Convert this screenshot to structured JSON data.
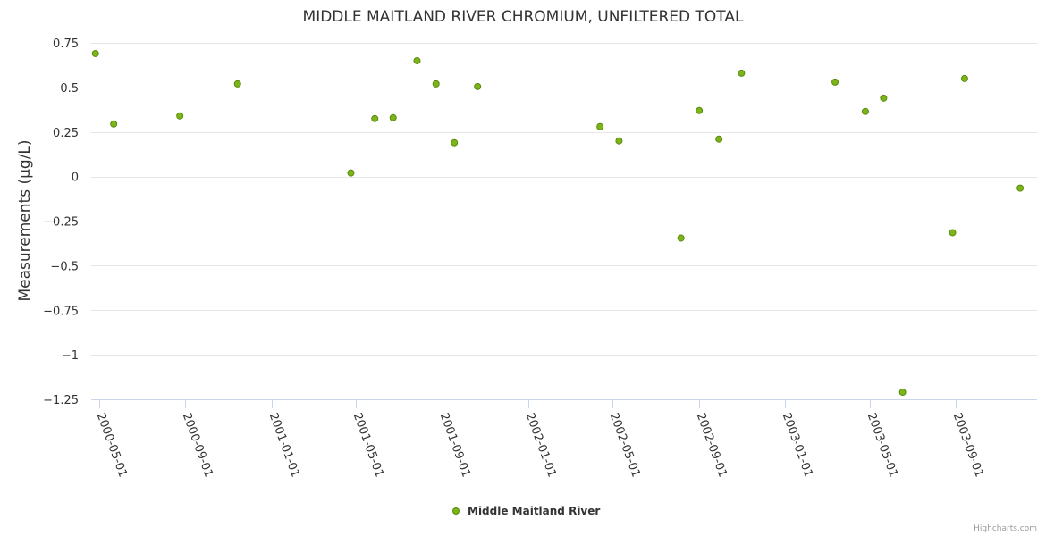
{
  "chart_data": {
    "type": "scatter",
    "title": "MIDDLE MAITLAND RIVER CHROMIUM, UNFILTERED TOTAL",
    "ylabel": "Measurements (µg/L)",
    "xlabel": "",
    "ylim": [
      -1.25,
      0.75
    ],
    "yticks": [
      0.75,
      0.5,
      0.25,
      0,
      -0.25,
      -0.5,
      -0.75,
      -1,
      -1.25
    ],
    "ytick_labels": [
      "0.75",
      "0.5",
      "0.25",
      "0",
      "−0.25",
      "−0.5",
      "−0.75",
      "−1",
      "−1.25"
    ],
    "xlim": [
      "2000-04-20",
      "2003-12-25"
    ],
    "xticks": [
      "2000-05-01",
      "2000-09-01",
      "2001-01-01",
      "2001-05-01",
      "2001-09-01",
      "2002-01-01",
      "2002-05-01",
      "2002-09-01",
      "2003-01-01",
      "2003-05-01",
      "2003-09-01"
    ],
    "grid": true,
    "legend": "bottom-center",
    "series": [
      {
        "name": "Middle Maitland River",
        "color": "#7cb518",
        "points": [
          {
            "x": "2000-04-26",
            "y": 0.69
          },
          {
            "x": "2000-05-22",
            "y": 0.295
          },
          {
            "x": "2000-08-24",
            "y": 0.34
          },
          {
            "x": "2000-11-14",
            "y": 0.52
          },
          {
            "x": "2001-04-24",
            "y": 0.02
          },
          {
            "x": "2001-05-28",
            "y": 0.325
          },
          {
            "x": "2001-06-23",
            "y": 0.33
          },
          {
            "x": "2001-07-27",
            "y": 0.65
          },
          {
            "x": "2001-08-23",
            "y": 0.52
          },
          {
            "x": "2001-09-18",
            "y": 0.19
          },
          {
            "x": "2001-10-21",
            "y": 0.505
          },
          {
            "x": "2002-04-13",
            "y": 0.28
          },
          {
            "x": "2002-05-10",
            "y": 0.2
          },
          {
            "x": "2002-08-06",
            "y": -0.345
          },
          {
            "x": "2002-09-01",
            "y": 0.37
          },
          {
            "x": "2002-09-29",
            "y": 0.21
          },
          {
            "x": "2002-10-31",
            "y": 0.58
          },
          {
            "x": "2003-03-13",
            "y": 0.53
          },
          {
            "x": "2003-04-25",
            "y": 0.365
          },
          {
            "x": "2003-05-21",
            "y": 0.44
          },
          {
            "x": "2003-06-17",
            "y": -1.21
          },
          {
            "x": "2003-08-27",
            "y": -0.315
          },
          {
            "x": "2003-09-13",
            "y": 0.55
          },
          {
            "x": "2003-12-01",
            "y": -0.065
          }
        ]
      }
    ]
  },
  "credits": "Highcharts.com"
}
